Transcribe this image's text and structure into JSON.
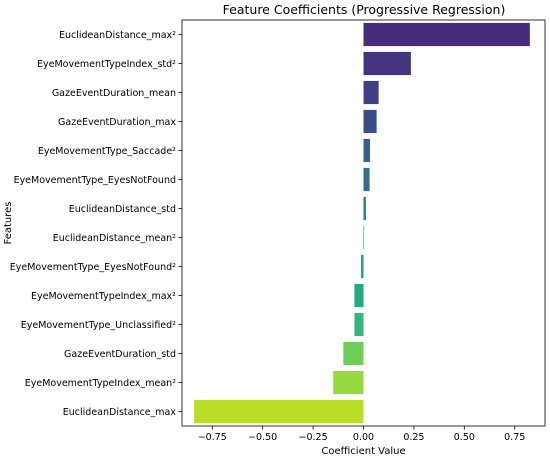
{
  "chart_data": {
    "type": "bar",
    "orientation": "horizontal",
    "title": "Feature Coefficients (Progressive Regression)",
    "xlabel": "Coefficient Value",
    "ylabel": "Features",
    "xlim": [
      -0.9,
      0.9
    ],
    "xticks": [
      -0.75,
      -0.5,
      -0.25,
      0.0,
      0.25,
      0.5,
      0.75
    ],
    "xtick_labels": [
      "−0.75",
      "−0.50",
      "−0.25",
      "0.00",
      "0.25",
      "0.50",
      "0.75"
    ],
    "categories": [
      "EuclideanDistance_max²",
      "EyeMovementTypeIndex_std²",
      "GazeEventDuration_mean",
      "GazeEventDuration_max",
      "EyeMovementType_Saccade²",
      "EyeMovementType_EyesNotFound",
      "EuclideanDistance_std",
      "EuclideanDistance_mean²",
      "EyeMovementType_EyesNotFound²",
      "EyeMovementTypeIndex_max²",
      "EyeMovementType_Unclassified²",
      "GazeEventDuration_std",
      "EyeMovementTypeIndex_mean²",
      "EuclideanDistance_max"
    ],
    "values": [
      0.825,
      0.235,
      0.075,
      0.065,
      0.032,
      0.03,
      0.012,
      0.002,
      -0.012,
      -0.045,
      -0.045,
      -0.1,
      -0.15,
      -0.84
    ],
    "colors": [
      "#472c7a",
      "#463480",
      "#413e85",
      "#3b4d88",
      "#33638d",
      "#2f6c8e",
      "#277f8e",
      "#21908d",
      "#1fa088",
      "#24aa83",
      "#35b779",
      "#6ece58",
      "#95d840",
      "#b8de29"
    ],
    "grid": false,
    "legend": "none"
  }
}
